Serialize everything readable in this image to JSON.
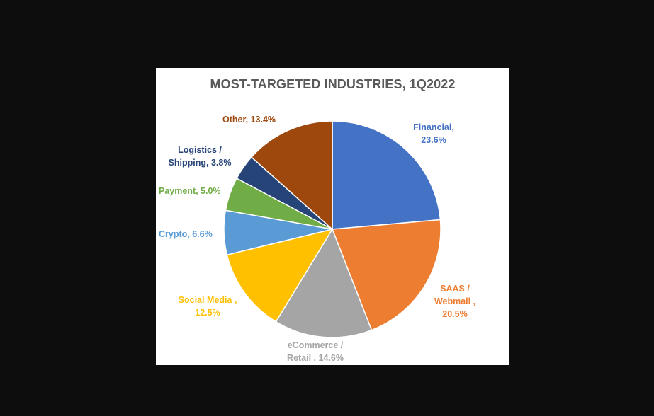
{
  "chart_data": {
    "type": "pie",
    "title": "MOST-TARGETED INDUSTRIES, 1Q2022",
    "slices": [
      {
        "label": "Financial,\n23.6%",
        "name": "Financial",
        "value": 23.6,
        "color": "#4472C4"
      },
      {
        "label": "SAAS /\nWebmail ,\n20.5%",
        "name": "SAAS / Webmail",
        "value": 20.5,
        "color": "#ED7D31"
      },
      {
        "label": "eCommerce /\nRetail , 14.6%",
        "name": "eCommerce / Retail",
        "value": 14.6,
        "color": "#A5A5A5"
      },
      {
        "label": "Social Media ,\n12.5%",
        "name": "Social Media",
        "value": 12.5,
        "color": "#FFC000"
      },
      {
        "label": "Crypto, 6.6%",
        "name": "Crypto",
        "value": 6.6,
        "color": "#5B9BD5"
      },
      {
        "label": "Payment, 5.0%",
        "name": "Payment",
        "value": 5.0,
        "color": "#70AD47"
      },
      {
        "label": "Logistics /\nShipping, 3.8%",
        "name": "Logistics / Shipping",
        "value": 3.8,
        "color": "#264478"
      },
      {
        "label": "Other, 13.4%",
        "name": "Other",
        "value": 13.4,
        "color": "#9E480E"
      }
    ],
    "label_colors": [
      "#4472C4",
      "#ED7D31",
      "#A5A5A5",
      "#FFC000",
      "#5B9BD5",
      "#70AD47",
      "#264478",
      "#9E480E"
    ],
    "legend": "none"
  }
}
